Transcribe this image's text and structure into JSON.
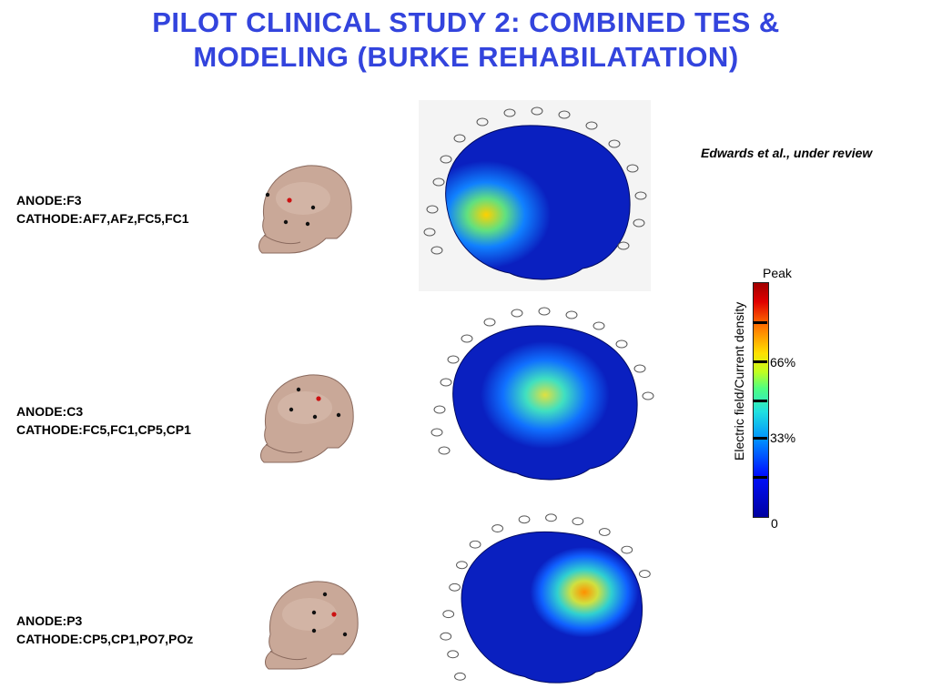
{
  "title": {
    "line1": "PILOT CLINICAL STUDY 2: COMBINED TES &",
    "line2": "MODELING  (BURKE REHABILATATION)"
  },
  "citation": "Edwards et al., under review",
  "rows": [
    {
      "anode": "ANODE:F3",
      "cathode": "CATHODE:AF7,AFz,FC5,FC1"
    },
    {
      "anode": "ANODE:C3",
      "cathode": "CATHODE:FC5,FC1,CP5,CP1"
    },
    {
      "anode": "ANODE:P3",
      "cathode": "CATHODE:CP5,CP1,PO7,POz"
    }
  ],
  "colorbar": {
    "axis_label": "Electric field/Current density",
    "ticks": {
      "peak": "Peak",
      "t66": "66%",
      "t33": "33%",
      "zero": "0"
    }
  }
}
